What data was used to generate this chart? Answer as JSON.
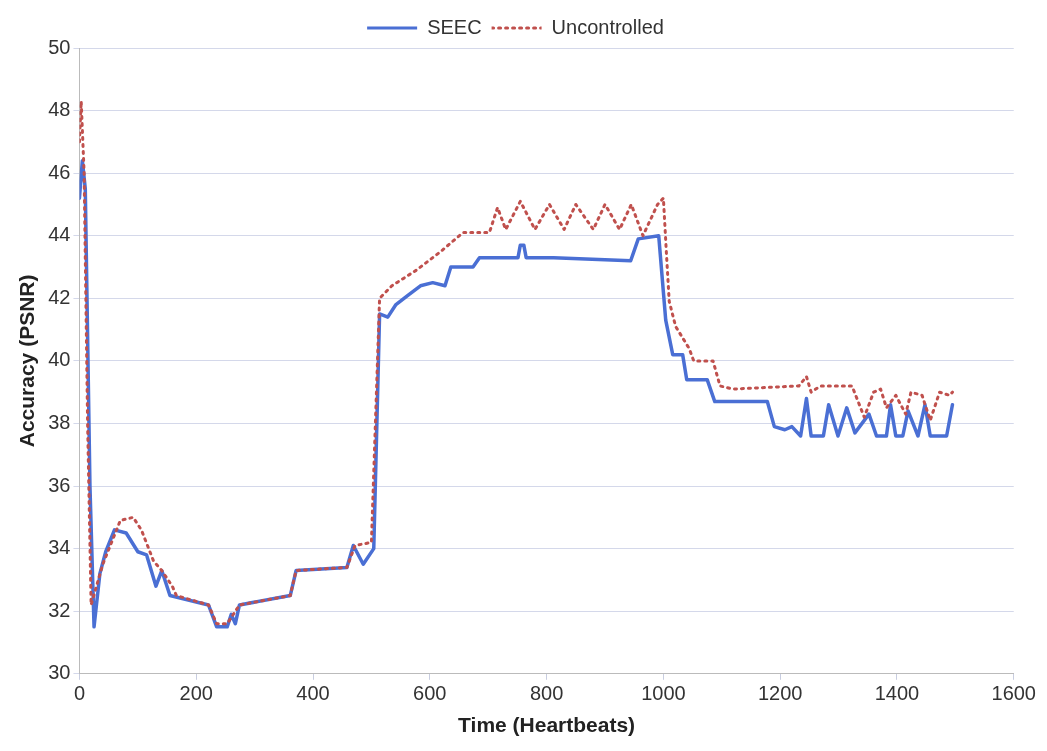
{
  "chart_data": {
    "type": "line",
    "xlabel": "Time (Heartbeats)",
    "ylabel": "Accuracy (PSNR)",
    "xlim": [
      0,
      1600
    ],
    "xticks": [
      0,
      200,
      400,
      600,
      800,
      1000,
      1200,
      1400,
      1600
    ],
    "ylim": [
      30,
      50
    ],
    "yticks": [
      30,
      32,
      34,
      36,
      38,
      40,
      42,
      44,
      46,
      48,
      50
    ],
    "grid": "y",
    "legend": "top",
    "marker": "none",
    "series": [
      {
        "name": "SEEC",
        "color": "#4a6fd4",
        "line_style": "solid",
        "x": [
          0,
          5,
          10,
          18,
          25,
          35,
          45,
          60,
          80,
          100,
          115,
          131,
          141,
          155,
          221,
          235,
          253,
          260,
          267,
          274,
          361,
          371,
          458,
          469,
          486,
          504,
          514,
          528,
          542,
          563,
          584,
          605,
          626,
          636,
          674,
          685,
          751,
          755,
          761,
          765,
          812,
          944,
          957,
          992,
          1000,
          1004,
          1016,
          1033,
          1040,
          1075,
          1088,
          1178,
          1190,
          1208,
          1220,
          1235,
          1245,
          1253,
          1274,
          1283,
          1299,
          1314,
          1328,
          1352,
          1365,
          1382,
          1389,
          1398,
          1410,
          1419,
          1436,
          1448,
          1457,
          1485,
          1495
        ],
        "values": [
          45.2,
          46.4,
          45.5,
          36,
          31.5,
          33.2,
          33.9,
          34.6,
          34.5,
          33.9,
          33.8,
          32.8,
          33.3,
          32.5,
          32.2,
          31.5,
          31.5,
          31.9,
          31.6,
          32.2,
          32.5,
          33.3,
          33.4,
          34.1,
          33.5,
          34.0,
          41.5,
          41.4,
          41.8,
          42.1,
          42.4,
          42.5,
          42.4,
          43.0,
          43.0,
          43.3,
          43.3,
          43.7,
          43.7,
          43.3,
          43.3,
          43.2,
          43.9,
          44.0,
          42.2,
          41.3,
          40.2,
          40.2,
          39.4,
          39.4,
          38.7,
          38.7,
          37.9,
          37.8,
          37.9,
          37.6,
          38.8,
          37.6,
          37.6,
          38.6,
          37.6,
          38.5,
          37.7,
          38.3,
          37.6,
          37.6,
          38.6,
          37.6,
          37.6,
          38.4,
          37.6,
          38.6,
          37.6,
          37.6,
          38.6
        ]
      },
      {
        "name": "Uncontrolled",
        "color": "#c0504d",
        "line_style": "dotted",
        "x": [
          0,
          3,
          8,
          14,
          20,
          40,
          70,
          92,
          106,
          127,
          141,
          159,
          166,
          221,
          235,
          253,
          274,
          361,
          371,
          458,
          472,
          500,
          514,
          535,
          577,
          619,
          657,
          702,
          716,
          730,
          755,
          780,
          805,
          830,
          850,
          880,
          900,
          925,
          945,
          965,
          990,
          1000,
          1005,
          1010,
          1021,
          1044,
          1052,
          1085,
          1097,
          1119,
          1232,
          1245,
          1253,
          1269,
          1323,
          1344,
          1360,
          1372,
          1382,
          1398,
          1415,
          1424,
          1443,
          1457,
          1473,
          1490,
          1495
        ],
        "values": [
          47.0,
          48.3,
          46.0,
          38,
          32.2,
          33.5,
          34.9,
          35.0,
          34.6,
          33.6,
          33.3,
          32.8,
          32.5,
          32.2,
          31.6,
          31.6,
          32.2,
          32.5,
          33.3,
          33.4,
          34.1,
          34.2,
          42.0,
          42.4,
          42.9,
          43.5,
          44.1,
          44.1,
          44.9,
          44.2,
          45.1,
          44.2,
          45.0,
          44.2,
          45.0,
          44.2,
          45.0,
          44.2,
          45.0,
          44.0,
          45.0,
          45.2,
          43.5,
          41.9,
          41.1,
          40.4,
          40.0,
          40.0,
          39.2,
          39.1,
          39.2,
          39.5,
          39.0,
          39.2,
          39.2,
          38.2,
          39.0,
          39.1,
          38.5,
          38.9,
          38.3,
          39.0,
          38.9,
          38.1,
          39.0,
          38.9,
          39.0
        ]
      }
    ]
  }
}
